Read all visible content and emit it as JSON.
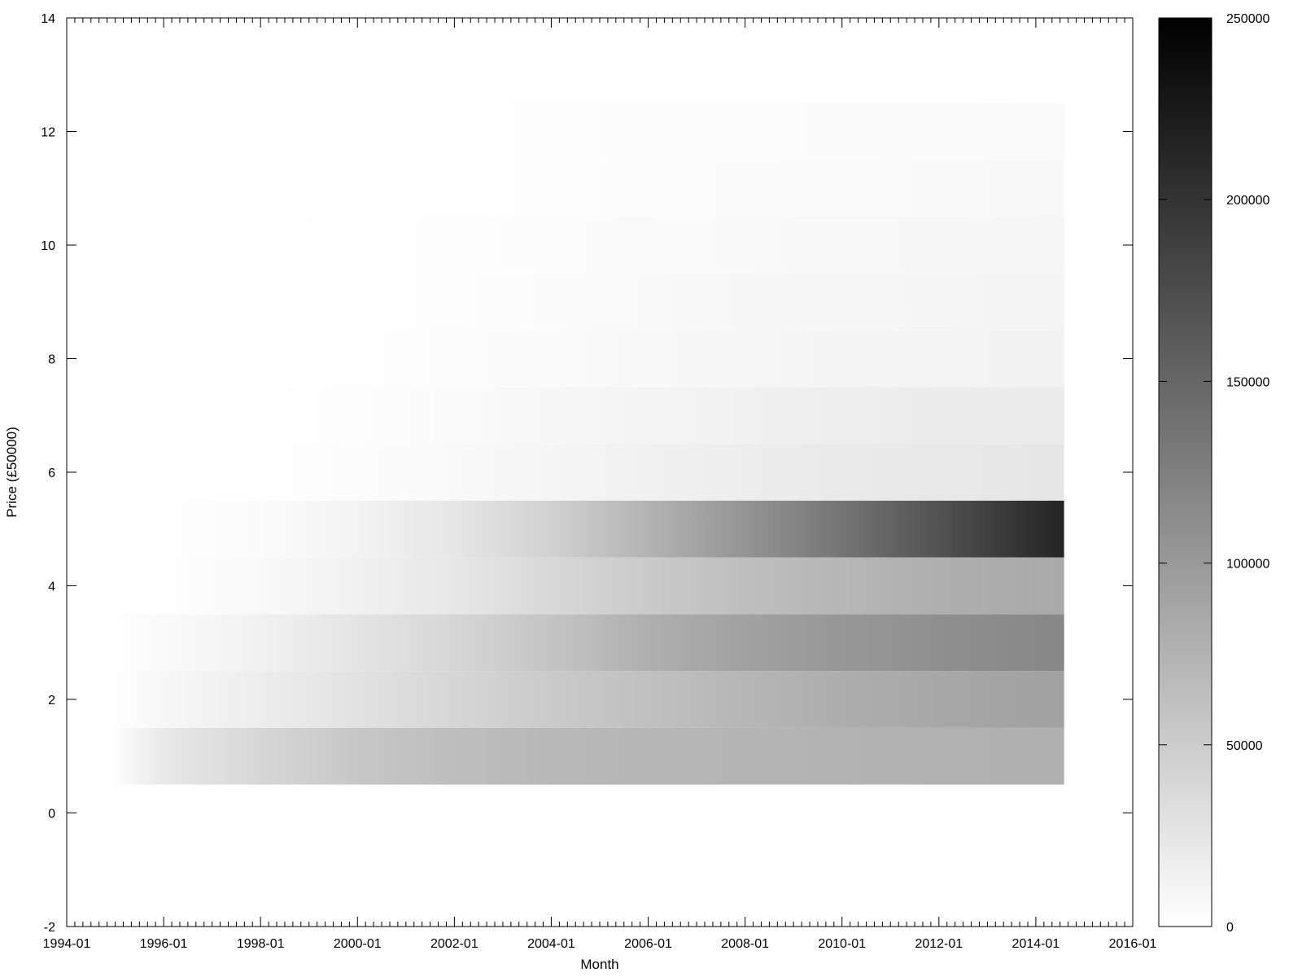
{
  "chart_data": {
    "type": "heatmap",
    "title": "",
    "xlabel": "Month",
    "ylabel": "Price (£50000)",
    "x_tick_labels": [
      "1994-01",
      "1996-01",
      "1998-01",
      "2000-01",
      "2002-01",
      "2004-01",
      "2006-01",
      "2008-01",
      "2010-01",
      "2012-01",
      "2014-01",
      "2016-01"
    ],
    "y_tick_labels": [
      "-2",
      "0",
      "2",
      "4",
      "6",
      "8",
      "10",
      "12",
      "14"
    ],
    "xlim": [
      "1994-01",
      "2016-01"
    ],
    "ylim": [
      -2,
      14
    ],
    "colorbar": {
      "ticks": [
        "0",
        "50000",
        "100000",
        "150000",
        "200000",
        "250000"
      ],
      "range": [
        0,
        250000
      ],
      "colors": [
        "#ffffff",
        "#000000"
      ]
    },
    "data_x_range": [
      "1995-01",
      "2014-08"
    ],
    "anchor_months": [
      "1995-01",
      "1996-01",
      "1998-01",
      "2000-01",
      "2002-01",
      "2004-01",
      "2006-01",
      "2008-01",
      "2010-01",
      "2012-01",
      "2014-08"
    ],
    "rows": [
      {
        "price_band": 1,
        "counts": [
          2000,
          22000,
          40000,
          55000,
          65000,
          70000,
          72000,
          74000,
          75000,
          76000,
          77000
        ]
      },
      {
        "price_band": 2,
        "counts": [
          500,
          8000,
          18000,
          28000,
          40000,
          52000,
          62000,
          72000,
          80000,
          86000,
          92000
        ]
      },
      {
        "price_band": 3,
        "counts": [
          500,
          5000,
          14000,
          26000,
          40000,
          58000,
          78000,
          92000,
          102000,
          110000,
          118000
        ]
      },
      {
        "price_band": 4,
        "counts": [
          0,
          1000,
          6000,
          14000,
          24000,
          38000,
          52000,
          64000,
          72000,
          78000,
          84000
        ]
      },
      {
        "price_band": 5,
        "counts": [
          0,
          500,
          4000,
          12000,
          25000,
          45000,
          75000,
          105000,
          135000,
          170000,
          215000
        ]
      },
      {
        "price_band": 6,
        "counts": [
          0,
          0,
          1000,
          3000,
          6000,
          10000,
          14000,
          18000,
          21000,
          23000,
          25000
        ]
      },
      {
        "price_band": 7,
        "counts": [
          0,
          0,
          500,
          2000,
          4500,
          8000,
          11000,
          14000,
          16500,
          18500,
          20000
        ]
      },
      {
        "price_band": 8,
        "counts": [
          0,
          0,
          0,
          1000,
          2500,
          4500,
          7000,
          9000,
          10500,
          12000,
          13000
        ]
      },
      {
        "price_band": 9,
        "counts": [
          0,
          0,
          0,
          500,
          2000,
          4000,
          6000,
          7500,
          9000,
          10000,
          11000
        ]
      },
      {
        "price_band": 10,
        "counts": [
          0,
          0,
          0,
          500,
          1500,
          3000,
          4500,
          6000,
          7000,
          8000,
          9000
        ]
      },
      {
        "price_band": 11,
        "counts": [
          0,
          0,
          0,
          0,
          1000,
          2000,
          3000,
          4000,
          5000,
          6000,
          6500
        ]
      },
      {
        "price_band": 12,
        "counts": [
          0,
          0,
          0,
          0,
          500,
          1500,
          2500,
          3000,
          3500,
          4000,
          4500
        ]
      }
    ]
  }
}
